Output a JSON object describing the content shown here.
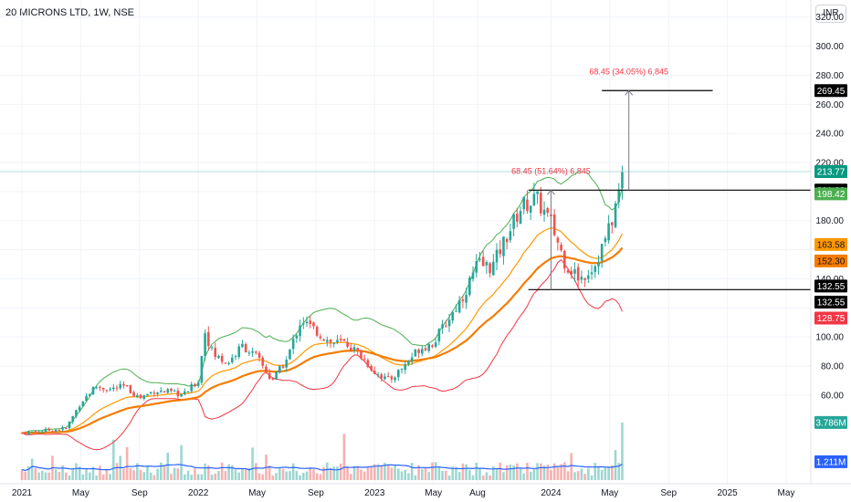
{
  "header": {
    "title": "20 MICRONS LTD, 1W, NSE",
    "currency": "INR"
  },
  "colors": {
    "up": "#26a69a",
    "down": "#ef5350",
    "bb": "#4caf50",
    "ema_short": "#ff9800",
    "ema_long": "#f57c00",
    "lower_band": "#f23645",
    "volume_ma": "#2962ff",
    "last_price": "#089981"
  },
  "chart_data": {
    "type": "candlestick",
    "symbol": "20 MICRONS LTD",
    "interval": "1W",
    "exchange": "NSE",
    "y_ticks": [
      60,
      80,
      100,
      120,
      140,
      160,
      180,
      200,
      220,
      240,
      260,
      280,
      300,
      320
    ],
    "y_tick_labels": [
      "60.00",
      "80.00",
      "100.00",
      "",
      "140.00",
      "",
      "180.00",
      "",
      "220.00",
      "240.00",
      "260.00",
      "280.00",
      "300.00",
      "320.00"
    ],
    "x_ticks": [
      {
        "label": "2021",
        "date": "2021-01"
      },
      {
        "label": "May",
        "date": "2021-05"
      },
      {
        "label": "Sep",
        "date": "2021-09"
      },
      {
        "label": "2022",
        "date": "2022-01"
      },
      {
        "label": "May",
        "date": "2022-05"
      },
      {
        "label": "Sep",
        "date": "2022-09"
      },
      {
        "label": "2023",
        "date": "2023-01"
      },
      {
        "label": "May",
        "date": "2023-05"
      },
      {
        "label": "Aug",
        "date": "2023-08"
      },
      {
        "label": "2024",
        "date": "2024-01"
      },
      {
        "label": "May",
        "date": "2024-05"
      },
      {
        "label": "Sep",
        "date": "2024-09"
      },
      {
        "label": "2025",
        "date": "2025-01"
      },
      {
        "label": "May",
        "date": "2025-05"
      }
    ],
    "price_anchors": [
      {
        "date": "2021-01",
        "price": 34
      },
      {
        "date": "2021-03",
        "price": 36
      },
      {
        "date": "2021-04",
        "price": 37
      },
      {
        "date": "2021-05",
        "price": 55
      },
      {
        "date": "2021-06",
        "price": 66
      },
      {
        "date": "2021-07",
        "price": 64
      },
      {
        "date": "2021-08",
        "price": 66
      },
      {
        "date": "2021-09",
        "price": 58
      },
      {
        "date": "2021-10",
        "price": 63
      },
      {
        "date": "2021-11",
        "price": 62
      },
      {
        "date": "2021-12",
        "price": 60
      },
      {
        "date": "2022-01",
        "price": 70
      },
      {
        "date": "2022-01-15",
        "price": 104
      },
      {
        "date": "2022-02",
        "price": 88
      },
      {
        "date": "2022-03",
        "price": 82
      },
      {
        "date": "2022-04",
        "price": 94
      },
      {
        "date": "2022-05",
        "price": 86
      },
      {
        "date": "2022-06",
        "price": 70
      },
      {
        "date": "2022-07",
        "price": 84
      },
      {
        "date": "2022-08",
        "price": 112
      },
      {
        "date": "2022-09",
        "price": 104
      },
      {
        "date": "2022-10",
        "price": 96
      },
      {
        "date": "2022-11",
        "price": 96
      },
      {
        "date": "2022-12",
        "price": 88
      },
      {
        "date": "2023-01",
        "price": 76
      },
      {
        "date": "2023-02",
        "price": 70
      },
      {
        "date": "2023-03",
        "price": 80
      },
      {
        "date": "2023-04",
        "price": 92
      },
      {
        "date": "2023-05",
        "price": 96
      },
      {
        "date": "2023-06",
        "price": 112
      },
      {
        "date": "2023-07",
        "price": 128
      },
      {
        "date": "2023-08",
        "price": 150
      },
      {
        "date": "2023-09",
        "price": 148
      },
      {
        "date": "2023-10",
        "price": 170
      },
      {
        "date": "2023-11",
        "price": 190
      },
      {
        "date": "2023-12",
        "price": 195
      },
      {
        "date": "2024-01",
        "price": 178
      },
      {
        "date": "2024-02",
        "price": 150
      },
      {
        "date": "2024-03",
        "price": 140
      },
      {
        "date": "2024-04",
        "price": 150
      },
      {
        "date": "2024-05",
        "price": 175
      },
      {
        "date": "2024-06",
        "price": 214
      }
    ],
    "horizontal_lines": [
      {
        "price": 269.45,
        "from": "2024-04-15",
        "to": "2024-12"
      },
      {
        "price": 201.0,
        "from": "2023-11-15",
        "to": "2025-12"
      },
      {
        "price": 132.55,
        "from": "2023-11-15",
        "to": "2025-12"
      }
    ],
    "measurements": [
      {
        "text": "68.45 (51.64%) 6,845",
        "from": 132.55,
        "to": 201.0,
        "date": "2024-01"
      },
      {
        "text": "68.45 (34.05%) 6,845",
        "from": 201.0,
        "to": 269.45,
        "date": "2024-06-10"
      }
    ],
    "price_badges": [
      {
        "label": "269.45",
        "price": 269.45,
        "color": "#000000",
        "text_color": "#ffffff"
      },
      {
        "label": "213.77",
        "price": 213.77,
        "color": "#089981",
        "text_color": "#ffffff"
      },
      {
        "label": "201.00",
        "price": 201.0,
        "color": "#000000",
        "text_color": "#ffffff"
      },
      {
        "label": "198.42",
        "price": 198.42,
        "color": "#4caf50",
        "text_color": "#ffffff"
      },
      {
        "label": "163.58",
        "price": 163.58,
        "color": "#ff9800",
        "text_color": "#131722"
      },
      {
        "label": "152.30",
        "price": 152.3,
        "color": "#f57c00",
        "text_color": "#131722"
      },
      {
        "label": "132.55",
        "price": 135.0,
        "color": "#000000",
        "text_color": "#ffffff"
      },
      {
        "label": "132.55",
        "price": 124.0,
        "color": "#000000",
        "text_color": "#ffffff"
      },
      {
        "label": "128.75",
        "price": 113.0,
        "color": "#f23645",
        "text_color": "#ffffff"
      }
    ],
    "volume_badges": [
      {
        "label": "3.786M",
        "value": 3.786,
        "color": "#26a69a"
      },
      {
        "label": "1.211M",
        "value": 1.211,
        "color": "#2962ff"
      }
    ],
    "last_price": 213.77
  }
}
